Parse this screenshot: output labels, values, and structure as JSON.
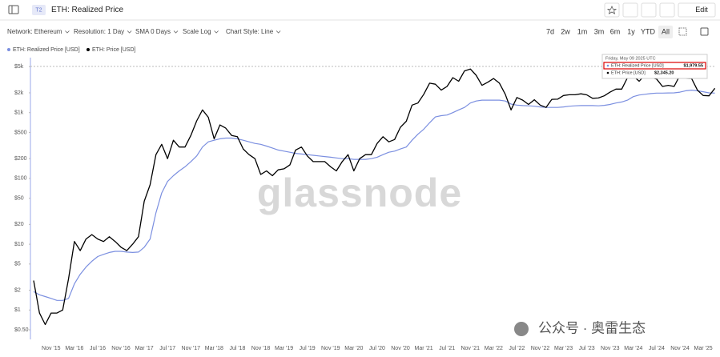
{
  "header": {
    "badge": "T2",
    "title": "ETH: Realized Price",
    "edit": "Edit"
  },
  "toolbar": {
    "controls": [
      "Network: Ethereum",
      "Resolution: 1 Day",
      "SMA 0 Days",
      "Scale Log",
      "Chart Style: Line"
    ],
    "ranges": [
      "7d",
      "2w",
      "1m",
      "3m",
      "6m",
      "1y",
      "YTD",
      "All"
    ]
  },
  "watermark": "glassnode",
  "source_mark": "公众号 · 奥雷生态",
  "tooltip": {
    "date": "Friday, May 09 2025 UTC",
    "rows": [
      {
        "name": "ETH: Realized Price [USD]",
        "value": "$1,979.55"
      },
      {
        "name": "ETH: Price [USD]",
        "value": "$2,345.20"
      }
    ]
  },
  "chart_data": {
    "type": "line",
    "log_scale": true,
    "grid": false,
    "ylim": [
      0.4,
      6300
    ],
    "yticks": [
      {
        "value": 5000,
        "label": "$5k"
      },
      {
        "value": 2000,
        "label": "$2k"
      },
      {
        "value": 1000,
        "label": "$1k"
      },
      {
        "value": 500,
        "label": "$500"
      },
      {
        "value": 200,
        "label": "$200"
      },
      {
        "value": 100,
        "label": "$100"
      },
      {
        "value": 50,
        "label": "$50"
      },
      {
        "value": 20,
        "label": "$20"
      },
      {
        "value": 10,
        "label": "$10"
      },
      {
        "value": 5,
        "label": "$5"
      },
      {
        "value": 2,
        "label": "$2"
      },
      {
        "value": 1,
        "label": "$1"
      },
      {
        "value": 0.5,
        "label": "$0.50"
      }
    ],
    "categories": [
      null,
      null,
      null,
      "Nov '15",
      null,
      null,
      null,
      "Mar '16",
      null,
      null,
      null,
      "Jul '16",
      null,
      null,
      null,
      "Nov '16",
      null,
      null,
      null,
      "Mar '17",
      null,
      null,
      null,
      "Jul '17",
      null,
      null,
      null,
      "Nov '17",
      null,
      null,
      null,
      "Mar '18",
      null,
      null,
      null,
      "Jul '18",
      null,
      null,
      null,
      "Nov '18",
      null,
      null,
      null,
      "Mar '19",
      null,
      null,
      null,
      "Jul '19",
      null,
      null,
      null,
      "Nov '19",
      null,
      null,
      null,
      "Mar '20",
      null,
      null,
      null,
      "Jul '20",
      null,
      null,
      null,
      "Nov '20",
      null,
      null,
      null,
      "Mar '21",
      null,
      null,
      null,
      "Jul '21",
      null,
      null,
      null,
      "Nov '21",
      null,
      null,
      null,
      "Mar '22",
      null,
      null,
      null,
      "Jul '22",
      null,
      null,
      null,
      "Nov '22",
      null,
      null,
      null,
      "Mar '23",
      null,
      null,
      null,
      "Jul '23",
      null,
      null,
      null,
      "Nov '23",
      null,
      null,
      null,
      "Mar '24",
      null,
      null,
      null,
      "Jul '24",
      null,
      null,
      null,
      "Nov '24",
      null,
      null,
      null,
      "Mar '25",
      null,
      null
    ],
    "series": [
      {
        "name": "ETH: Realized Price [USD]",
        "color": "#7b8fe0",
        "values": [
          1.9,
          1.7,
          1.6,
          1.5,
          1.4,
          1.4,
          1.5,
          2.5,
          3.5,
          4.5,
          5.5,
          6.5,
          7,
          7.5,
          7.8,
          7.8,
          7.6,
          7.5,
          7.6,
          9,
          12,
          30,
          60,
          90,
          110,
          130,
          150,
          180,
          220,
          300,
          360,
          380,
          400,
          410,
          410,
          400,
          380,
          360,
          340,
          330,
          310,
          290,
          270,
          260,
          250,
          240,
          235,
          230,
          225,
          220,
          215,
          210,
          205,
          200,
          200,
          195,
          195,
          195,
          200,
          210,
          230,
          250,
          260,
          280,
          300,
          380,
          470,
          560,
          700,
          860,
          900,
          920,
          1000,
          1100,
          1200,
          1400,
          1500,
          1550,
          1550,
          1550,
          1550,
          1500,
          1350,
          1300,
          1280,
          1270,
          1250,
          1220,
          1200,
          1200,
          1200,
          1220,
          1250,
          1270,
          1280,
          1280,
          1280,
          1270,
          1290,
          1330,
          1400,
          1450,
          1550,
          1750,
          1850,
          1900,
          1950,
          1980,
          1980,
          1990,
          2000,
          2050,
          2150,
          2200,
          2150,
          2080,
          2000,
          1979.55
        ]
      },
      {
        "name": "ETH: Price [USD]",
        "color": "#000000",
        "values": [
          2.8,
          0.9,
          0.6,
          0.9,
          0.9,
          1.0,
          3,
          11,
          8,
          12,
          14,
          12,
          11,
          13,
          11,
          9,
          8,
          10,
          13,
          45,
          80,
          230,
          330,
          200,
          380,
          300,
          300,
          450,
          750,
          1100,
          850,
          400,
          650,
          580,
          450,
          430,
          280,
          230,
          200,
          115,
          130,
          110,
          135,
          140,
          160,
          270,
          300,
          220,
          180,
          180,
          180,
          150,
          130,
          180,
          230,
          130,
          200,
          230,
          230,
          340,
          430,
          360,
          390,
          600,
          740,
          1300,
          1400,
          1900,
          2800,
          2700,
          2200,
          2500,
          3400,
          3000,
          4300,
          4600,
          3700,
          2600,
          2900,
          3300,
          2800,
          1900,
          1100,
          1700,
          1550,
          1330,
          1570,
          1300,
          1200,
          1590,
          1600,
          1820,
          1870,
          1870,
          1930,
          1860,
          1650,
          1670,
          1800,
          2050,
          2280,
          2280,
          3400,
          3600,
          3000,
          3750,
          3430,
          3230,
          2500,
          2600,
          2500,
          3700,
          3330,
          3300,
          2200,
          1820,
          1800,
          2345.2
        ]
      }
    ]
  }
}
